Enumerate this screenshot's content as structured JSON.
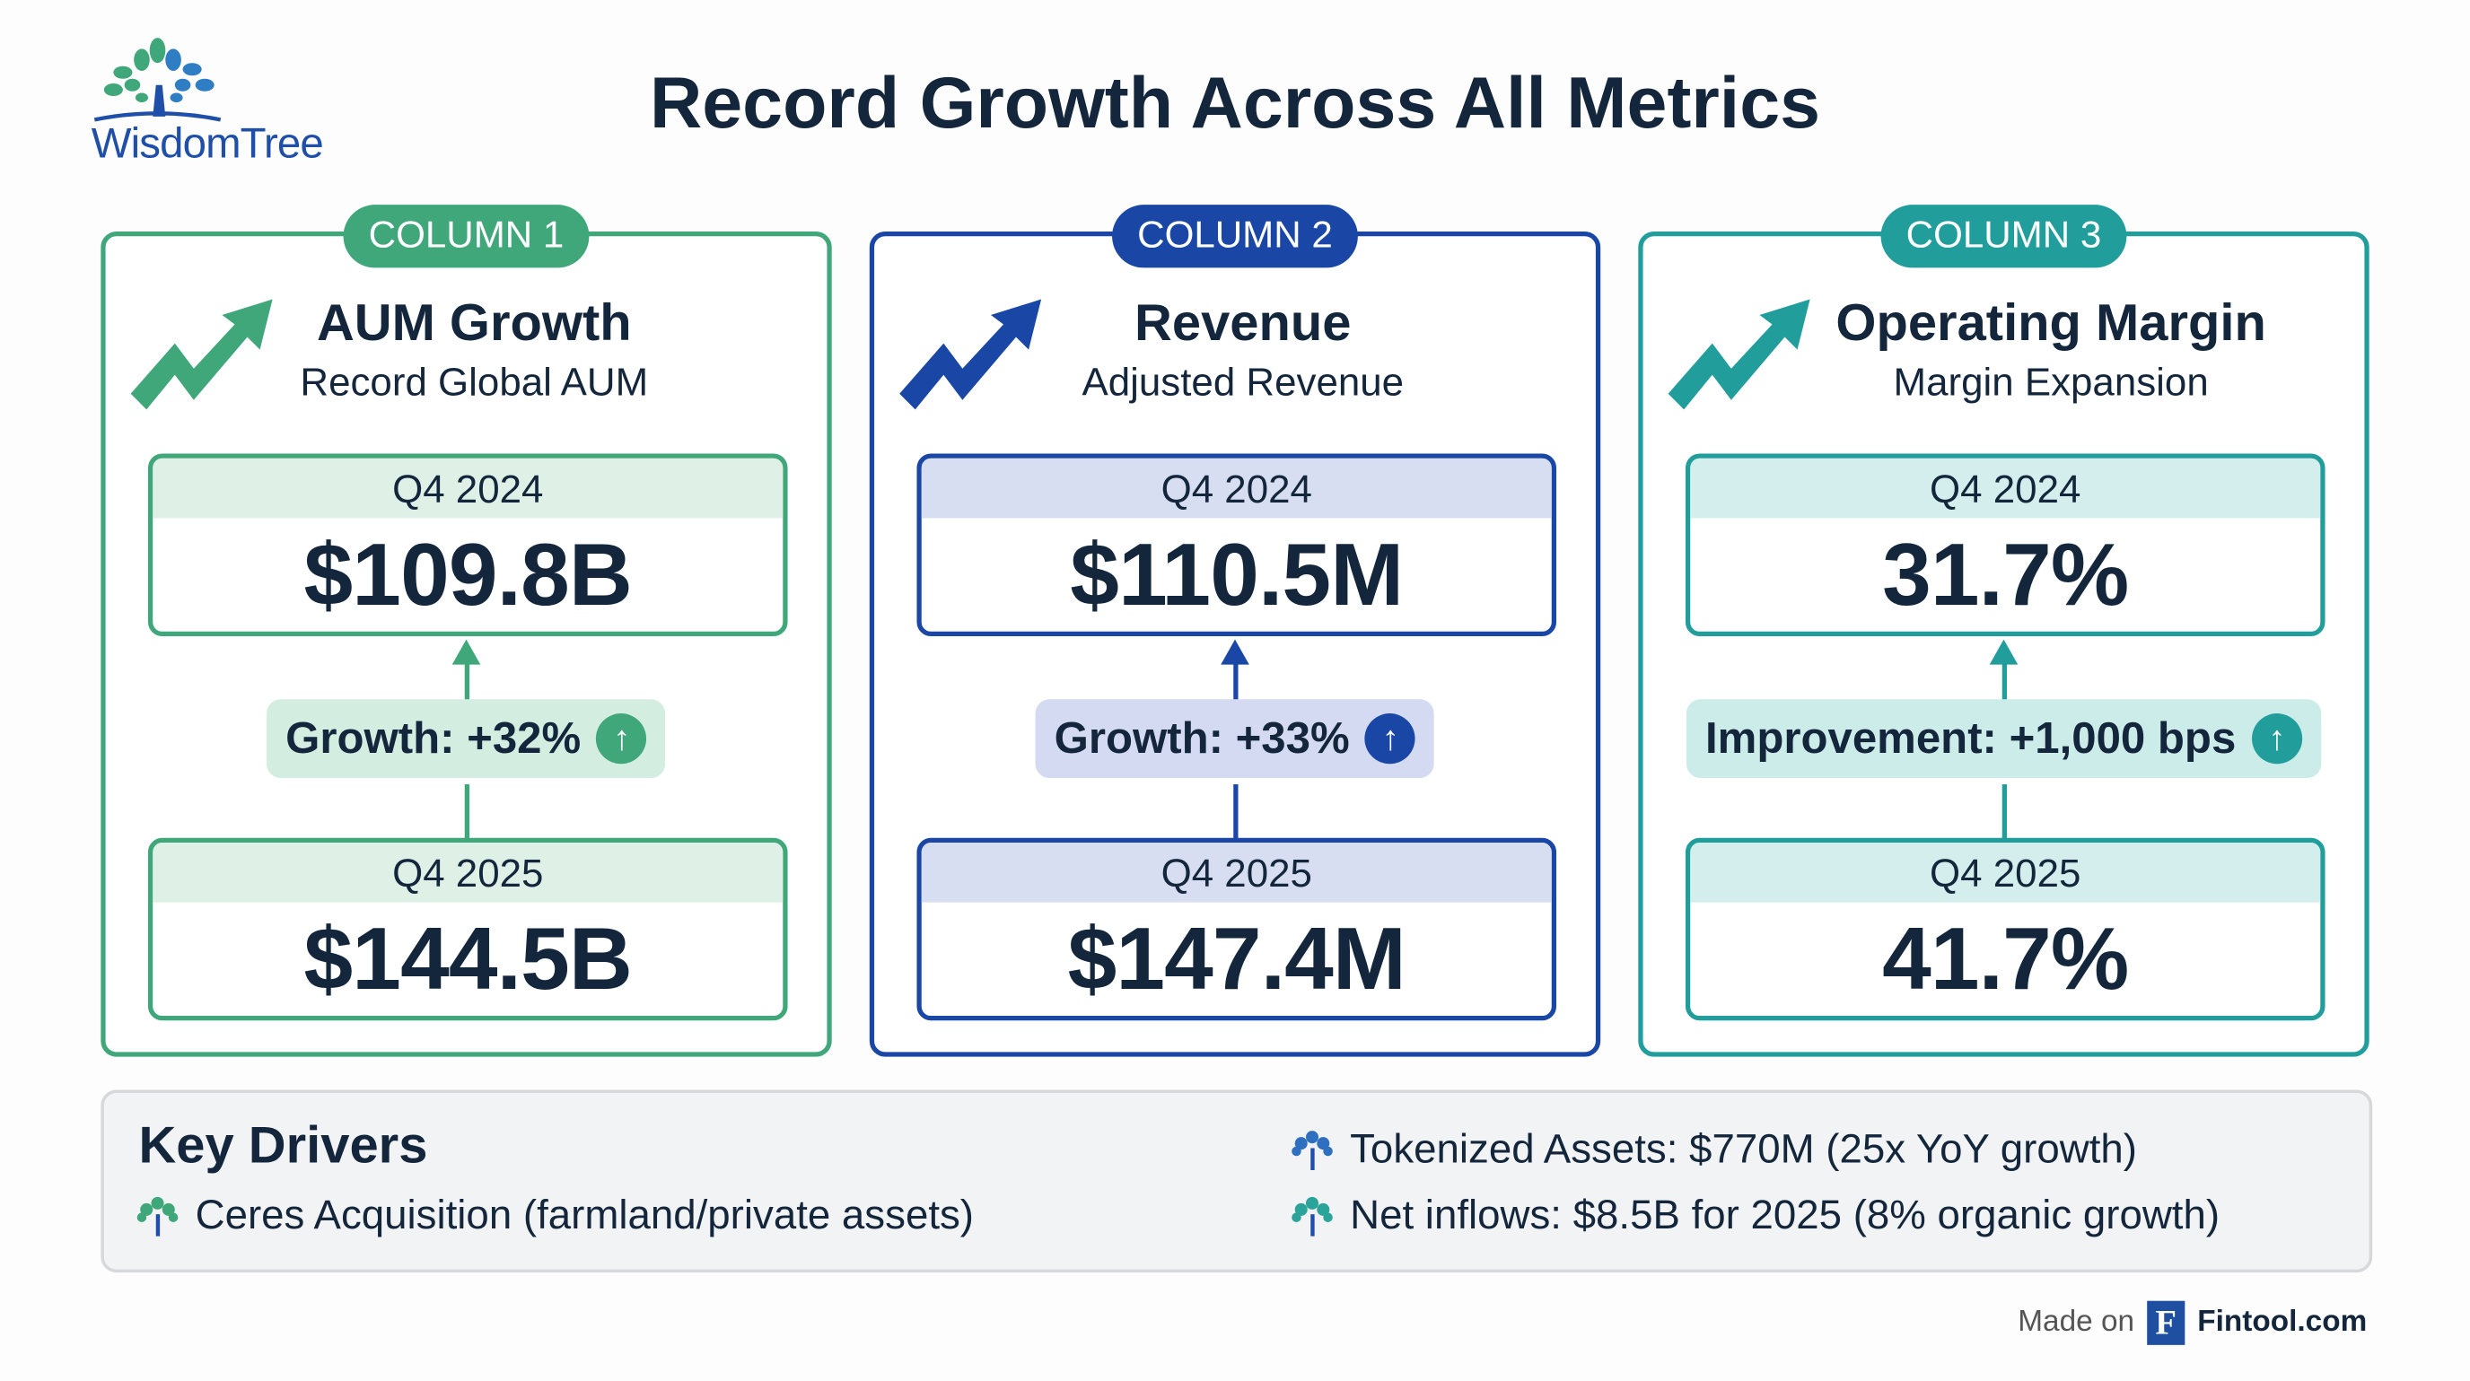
{
  "logo": {
    "text": "WisdomTree",
    "icon": "tree-logo-icon"
  },
  "title": "Record Growth Across All Metrics",
  "colors": {
    "green": "#3fa77a",
    "blue": "#1a47a6",
    "teal": "#219e9c",
    "text": "#13263b"
  },
  "columns": [
    {
      "badge": "COLUMN 1",
      "title": "AUM Growth",
      "subtitle": "Record Global AUM",
      "before": {
        "label": "Q4 2024",
        "value": "$109.8B"
      },
      "change": "Growth: +32%",
      "after": {
        "label": "Q4 2025",
        "value": "$144.5B"
      }
    },
    {
      "badge": "COLUMN 2",
      "title": "Revenue",
      "subtitle": "Adjusted Revenue",
      "before": {
        "label": "Q4 2024",
        "value": "$110.5M"
      },
      "change": "Growth: +33%",
      "after": {
        "label": "Q4 2025",
        "value": "$147.4M"
      }
    },
    {
      "badge": "COLUMN 3",
      "title": "Operating Margin",
      "subtitle": "Margin Expansion",
      "before": {
        "label": "Q4 2024",
        "value": "31.7%"
      },
      "change": "Improvement: +1,000 bps",
      "after": {
        "label": "Q4 2025",
        "value": "41.7%"
      }
    }
  ],
  "drivers": {
    "title": "Key Drivers",
    "items": [
      "Ceres Acquisition (farmland/private assets)",
      "Tokenized Assets: $770M (25x YoY growth)",
      "Net inflows: $8.5B for 2025 (8% organic growth)"
    ]
  },
  "footer": {
    "made_on": "Made on",
    "brand_letter": "F",
    "brand": "Fintool.com"
  },
  "icons": {
    "up": "↑"
  }
}
